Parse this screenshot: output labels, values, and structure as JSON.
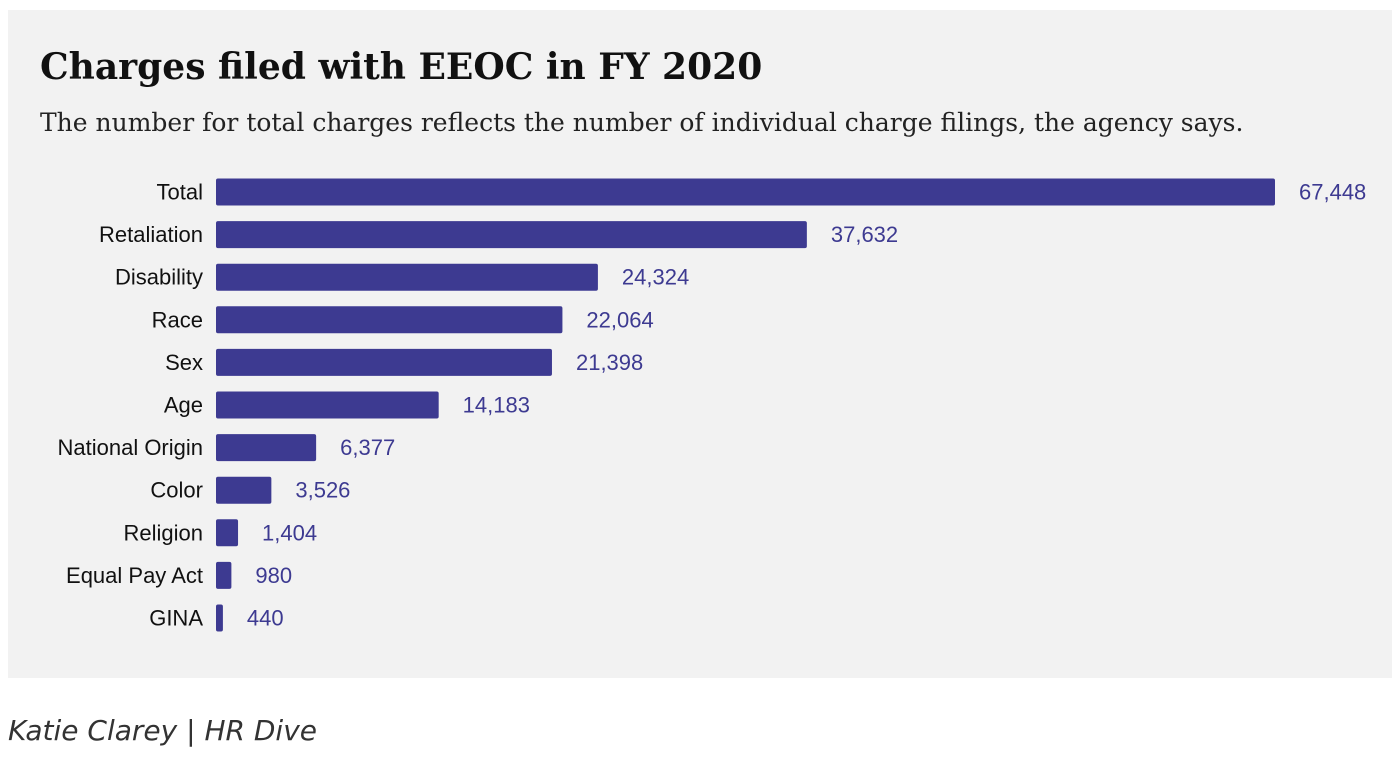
{
  "chart_data": {
    "type": "bar",
    "orientation": "horizontal",
    "title": "Charges filed with EEOC in FY 2020",
    "subtitle": "The number for total charges reflects the number of individual charge filings, the agency says.",
    "categories": [
      "Total",
      "Retaliation",
      "Disability",
      "Race",
      "Sex",
      "Age",
      "National Origin",
      "Color",
      "Religion",
      "Equal Pay Act",
      "GINA"
    ],
    "values": [
      67448,
      37632,
      24324,
      22064,
      21398,
      14183,
      6377,
      3526,
      1404,
      980,
      440
    ],
    "value_labels": [
      "67,448",
      "37,632",
      "24,324",
      "22,064",
      "21,398",
      "14,183",
      "6,377",
      "3,526",
      "1,404",
      "980",
      "440"
    ],
    "xlim": [
      0,
      67448
    ],
    "grid": false,
    "legend": "none",
    "bar_color": "#3d3a91",
    "label_color": "#3d3a91"
  },
  "credit": "Katie Clarey | HR Dive"
}
